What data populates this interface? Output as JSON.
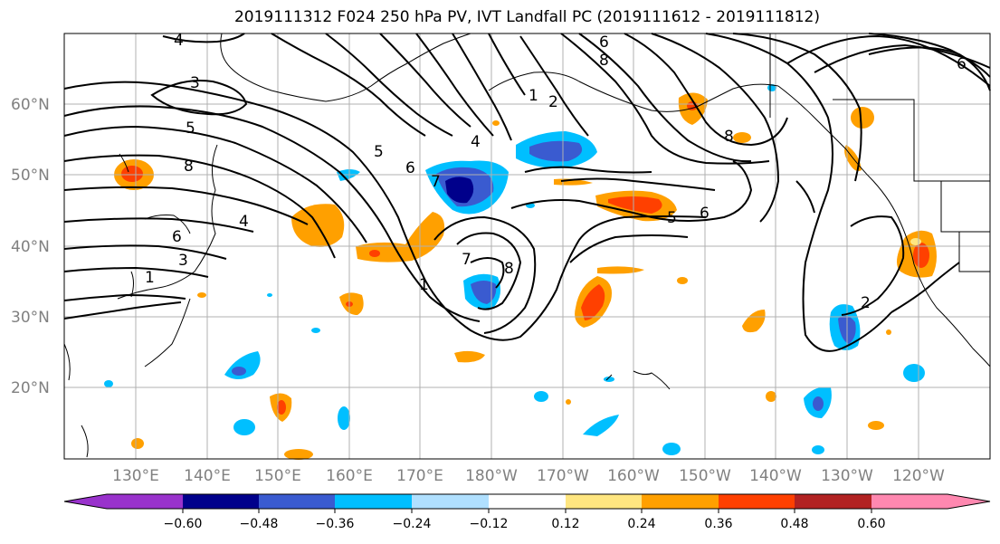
{
  "title": "2019111312 F024 250 hPa PV, IVT Landfall PC (2019111612 - 2019111812)",
  "lat_labels": [
    "60°N",
    "50°N",
    "40°N",
    "30°N",
    "20°N"
  ],
  "lon_labels": [
    "130°E",
    "140°E",
    "150°E",
    "160°E",
    "170°E",
    "180°W",
    "170°W",
    "160°W",
    "150°W",
    "140°W",
    "130°W",
    "120°W"
  ],
  "contour_labels": [
    "4",
    "3",
    "5",
    "8",
    "6",
    "3",
    "1",
    "4",
    "5",
    "6",
    "7",
    "1",
    "7",
    "8",
    "1",
    "2",
    "4",
    "6",
    "8",
    "5",
    "6",
    "2",
    "8",
    "6"
  ],
  "colorbar": {
    "ticks": [
      "−0.60",
      "−0.48",
      "−0.36",
      "−0.24",
      "−0.12",
      "0.12",
      "0.24",
      "0.36",
      "0.48",
      "0.60"
    ],
    "colors": [
      "#9932cc",
      "#00008b",
      "#3a5bd0",
      "#00bfff",
      "#b0e0ff",
      "#ffffff",
      "#ffe680",
      "#ffa000",
      "#ff4000",
      "#b22222",
      "#ff88b0"
    ]
  },
  "colors": {
    "neg_strong": "#00008b",
    "neg_mid": "#3a5bd0",
    "neg_light": "#00bfff",
    "neg_pale": "#b0e0ff",
    "pos_pale": "#ffe680",
    "pos_light": "#ffa000",
    "pos_mid": "#ff4000",
    "grid": "#b0b0b0"
  }
}
